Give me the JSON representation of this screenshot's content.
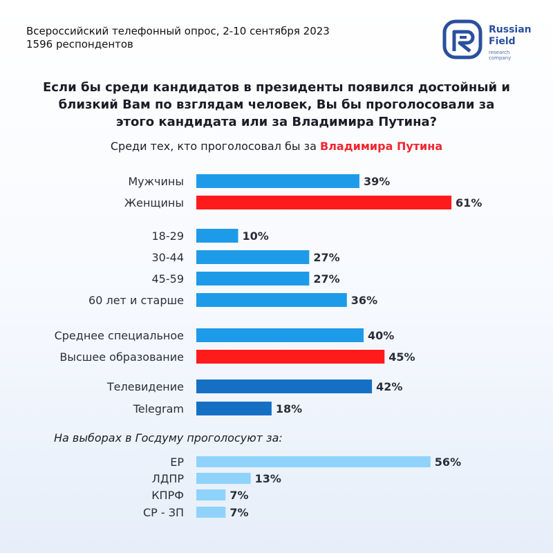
{
  "header": {
    "survey_line": "Всероссийский телефонный опрос, 2-10 сентября 2023",
    "respondents": "1596 респондентов"
  },
  "logo": {
    "word1": "Russian",
    "word2": "Field",
    "tagline": "research company"
  },
  "question": [
    "Если бы среди кандидатов в президенты появился достойный и",
    "близкий Вам по взглядам человек, Вы бы проголосовали за",
    "этого кандидата или за Владимира Путина?"
  ],
  "subtitle": {
    "prefix": "Среди тех, кто проголосовал бы за ",
    "accent": "Владимира Путина"
  },
  "section_title": "На выборах в Госдуму проголосуют за:",
  "colors": {
    "blue": "#1e9be8",
    "red": "#ff1b1b",
    "dark_blue": "#1570c4",
    "light_blue": "#8fd3fb",
    "accent_text": "#f2262e"
  },
  "chart_data": {
    "type": "bar",
    "orientation": "horizontal",
    "title": "Среди тех, кто проголосовал бы за Владимира Путина",
    "xlim": [
      0,
      100
    ],
    "unit": "%",
    "categories": [
      "Мужчины",
      "Женщины",
      "18-29",
      "30-44",
      "45-59",
      "60 лет и старше",
      "Среднее специальное",
      "Высшее образование",
      "Телевидение",
      "Telegram",
      "ЕР",
      "ЛДПР",
      "КПРФ",
      "СР - ЗП"
    ],
    "values": [
      39,
      61,
      10,
      27,
      27,
      36,
      40,
      45,
      42,
      18,
      56,
      13,
      7,
      7
    ],
    "labels": [
      "39%",
      "61%",
      "10%",
      "27%",
      "27%",
      "36%",
      "40%",
      "45%",
      "42%",
      "18%",
      "56%",
      "13%",
      "7%",
      "7%"
    ],
    "bar_colors": [
      "blue",
      "red",
      "blue",
      "blue",
      "blue",
      "blue",
      "blue",
      "red",
      "dark_blue",
      "dark_blue",
      "light_blue",
      "light_blue",
      "light_blue",
      "light_blue"
    ]
  }
}
